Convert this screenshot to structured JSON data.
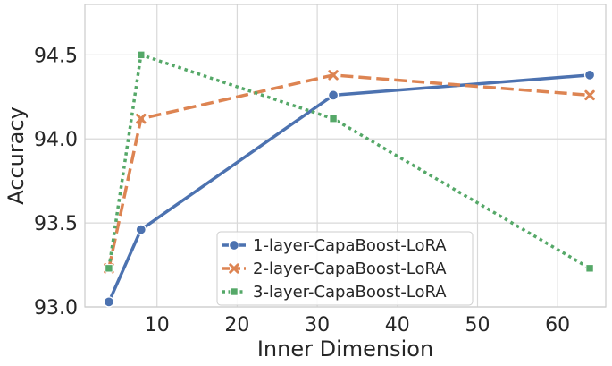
{
  "chart_data": {
    "type": "line",
    "title": "",
    "xlabel": "Inner Dimension",
    "ylabel": "Accuracy",
    "xlim": [
      1,
      66
    ],
    "ylim": [
      93.0,
      94.8
    ],
    "xticks": [
      10,
      20,
      30,
      40,
      50,
      60
    ],
    "yticks": [
      93.0,
      93.5,
      94.0,
      94.5
    ],
    "xtick_labels": [
      "10",
      "20",
      "30",
      "40",
      "50",
      "60"
    ],
    "ytick_labels": [
      "93.0",
      "93.5",
      "94.0",
      "94.5"
    ],
    "grid": true,
    "legend_position": "lower-center",
    "x": [
      4,
      8,
      32,
      64
    ],
    "series": [
      {
        "name": "1-layer-CapaBoost-LoRA",
        "values": [
          93.03,
          93.46,
          94.26,
          94.38
        ],
        "color": "#4c72b0",
        "dash": "solid",
        "marker": "circle"
      },
      {
        "name": "2-layer-CapaBoost-LoRA",
        "values": [
          93.23,
          94.12,
          94.38,
          94.26
        ],
        "color": "#dd8452",
        "dash": "dashed",
        "marker": "x"
      },
      {
        "name": "3-layer-CapaBoost-LoRA",
        "values": [
          93.23,
          94.5,
          94.12,
          93.23
        ],
        "color": "#55a868",
        "dash": "dotted",
        "marker": "square"
      }
    ]
  }
}
